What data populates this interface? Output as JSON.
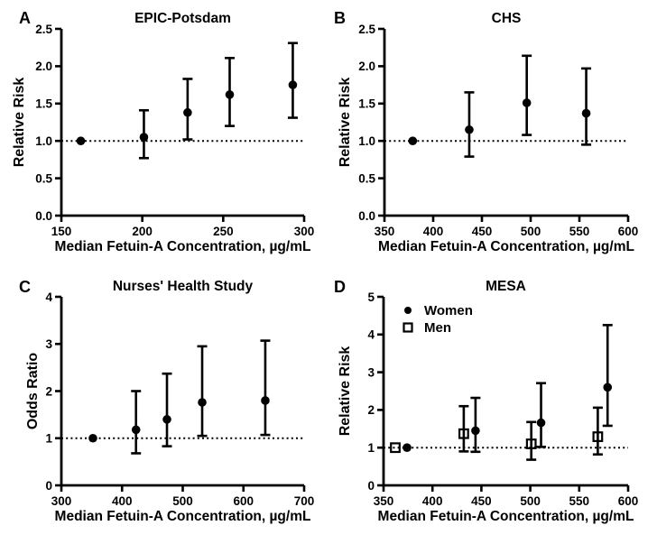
{
  "figure": {
    "background": "#ffffff",
    "ink_color": "#000000",
    "description_visible_text_only": true
  },
  "chart_data": {
    "type": "scatter",
    "subtype": "point-estimate-with-95ci-error-bars",
    "grid": "off",
    "panels": [
      {
        "letter": "A",
        "title": "EPIC-Potsdam",
        "xlabel": "Median Fetuin-A Concentration, µg/mL",
        "ylabel": "Relative Risk",
        "xlim": [
          150,
          300
        ],
        "ylim": [
          0,
          2.5
        ],
        "xticks": [
          "150",
          "200",
          "250",
          "300"
        ],
        "yticks": [
          "0.0",
          "0.5",
          "1.0",
          "1.5",
          "2.0",
          "2.5"
        ],
        "refline": 1.0,
        "refline_style": "dotted",
        "series": [
          {
            "marker": "circle-filled",
            "points": [
              {
                "x": 162,
                "y": 1.0
              },
              {
                "x": 201,
                "y": 1.05,
                "lo": 0.77,
                "hi": 1.41
              },
              {
                "x": 228,
                "y": 1.38,
                "lo": 1.02,
                "hi": 1.83
              },
              {
                "x": 254,
                "y": 1.62,
                "lo": 1.2,
                "hi": 2.11
              },
              {
                "x": 293,
                "y": 1.75,
                "lo": 1.31,
                "hi": 2.31
              }
            ]
          }
        ]
      },
      {
        "letter": "B",
        "title": "CHS",
        "xlabel": "Median Fetuin-A Concentration, µg/mL",
        "ylabel": "Relative Risk",
        "xlim": [
          350,
          600
        ],
        "ylim": [
          0,
          2.5
        ],
        "xticks": [
          "350",
          "400",
          "450",
          "500",
          "550",
          "600"
        ],
        "yticks": [
          "0.0",
          "0.5",
          "1.0",
          "1.5",
          "2.0",
          "2.5"
        ],
        "refline": 1.0,
        "refline_style": "dotted",
        "series": [
          {
            "marker": "circle-filled",
            "points": [
              {
                "x": 379,
                "y": 1.0
              },
              {
                "x": 437,
                "y": 1.15,
                "lo": 0.79,
                "hi": 1.65
              },
              {
                "x": 496,
                "y": 1.51,
                "lo": 1.08,
                "hi": 2.14
              },
              {
                "x": 557,
                "y": 1.37,
                "lo": 0.95,
                "hi": 1.97
              }
            ]
          }
        ]
      },
      {
        "letter": "C",
        "title": "Nurses' Health Study",
        "xlabel": "Median Fetuin-A Concentration, µg/mL",
        "ylabel": "Odds Ratio",
        "xlim": [
          300,
          700
        ],
        "ylim": [
          0,
          4
        ],
        "xticks": [
          "300",
          "400",
          "500",
          "600",
          "700"
        ],
        "yticks": [
          "0",
          "1",
          "2",
          "3",
          "4"
        ],
        "refline": 1.0,
        "refline_style": "dotted",
        "series": [
          {
            "marker": "circle-filled",
            "points": [
              {
                "x": 352,
                "y": 1.0
              },
              {
                "x": 423,
                "y": 1.18,
                "lo": 0.68,
                "hi": 2.0
              },
              {
                "x": 474,
                "y": 1.4,
                "lo": 0.83,
                "hi": 2.37
              },
              {
                "x": 532,
                "y": 1.76,
                "lo": 1.05,
                "hi": 2.95
              },
              {
                "x": 636,
                "y": 1.8,
                "lo": 1.07,
                "hi": 3.07
              }
            ]
          }
        ]
      },
      {
        "letter": "D",
        "title": "MESA",
        "xlabel": "Median Fetuin-A Concentration, µg/mL",
        "ylabel": "Relative Risk",
        "xlim": [
          350,
          600
        ],
        "ylim": [
          0,
          5
        ],
        "xticks": [
          "350",
          "400",
          "450",
          "500",
          "550",
          "600"
        ],
        "yticks": [
          "0",
          "1",
          "2",
          "3",
          "4",
          "5"
        ],
        "refline": 1.0,
        "refline_style": "dotted",
        "legend": {
          "position": "inside-top-left",
          "items": [
            {
              "label": "Women",
              "marker": "circle-filled"
            },
            {
              "label": "Men",
              "marker": "square-open"
            }
          ]
        },
        "series": [
          {
            "name": "Women",
            "marker": "circle-filled",
            "points": [
              {
                "x": 374,
                "y": 1.0
              },
              {
                "x": 444,
                "y": 1.45,
                "lo": 0.89,
                "hi": 2.32
              },
              {
                "x": 511,
                "y": 1.66,
                "lo": 1.02,
                "hi": 2.71
              },
              {
                "x": 579,
                "y": 2.6,
                "lo": 1.58,
                "hi": 4.25
              }
            ]
          },
          {
            "name": "Men",
            "marker": "square-open",
            "points": [
              {
                "x": 362,
                "y": 1.0
              },
              {
                "x": 432,
                "y": 1.37,
                "lo": 0.9,
                "hi": 2.1
              },
              {
                "x": 501,
                "y": 1.1,
                "lo": 0.68,
                "hi": 1.68
              },
              {
                "x": 569,
                "y": 1.29,
                "lo": 0.82,
                "hi": 2.06
              }
            ]
          }
        ]
      }
    ]
  }
}
